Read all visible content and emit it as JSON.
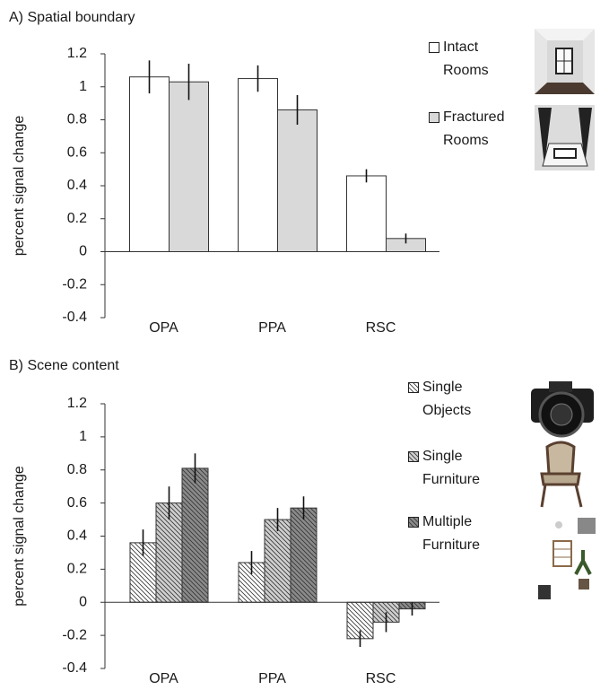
{
  "chart_data": [
    {
      "type": "bar",
      "title": "A) Spatial boundary",
      "ylabel": "percent signal change",
      "categories": [
        "OPA",
        "PPA",
        "RSC"
      ],
      "series": [
        {
          "name": "Intact Rooms",
          "color": "#ffffff",
          "values": [
            1.06,
            1.05,
            0.46
          ],
          "errors": [
            0.1,
            0.08,
            0.04
          ]
        },
        {
          "name": "Fractured Rooms",
          "color": "#d9d9d9",
          "values": [
            1.03,
            0.86,
            0.08
          ],
          "errors": [
            0.11,
            0.09,
            0.03
          ]
        }
      ],
      "ylim": [
        -0.4,
        1.2
      ],
      "yticks": [
        -0.4,
        -0.2,
        0,
        0.2,
        0.4,
        0.6,
        0.8,
        1,
        1.2
      ],
      "hatch": false
    },
    {
      "type": "bar",
      "title": "B) Scene content",
      "ylabel": "percent signal change",
      "categories": [
        "OPA",
        "PPA",
        "RSC"
      ],
      "series": [
        {
          "name": "Single Objects",
          "color": "#ffffff",
          "values": [
            0.36,
            0.24,
            -0.22
          ],
          "errors": [
            0.08,
            0.07,
            0.05
          ]
        },
        {
          "name": "Single Furniture",
          "color": "#cfcfcf",
          "values": [
            0.6,
            0.5,
            -0.12
          ],
          "errors": [
            0.1,
            0.07,
            0.06
          ]
        },
        {
          "name": "Multiple Furniture",
          "color": "#8a8a8a",
          "values": [
            0.81,
            0.57,
            -0.04
          ],
          "errors": [
            0.09,
            0.07,
            0.04
          ]
        }
      ],
      "ylim": [
        -0.4,
        1.2
      ],
      "yticks": [
        -0.4,
        -0.2,
        0,
        0.2,
        0.4,
        0.6,
        0.8,
        1,
        1.2
      ],
      "hatch": true
    }
  ]
}
